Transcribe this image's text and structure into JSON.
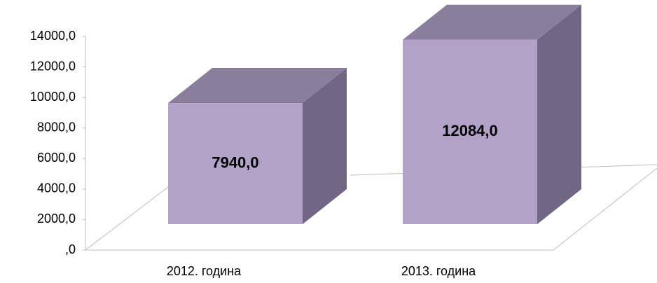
{
  "chart_data": {
    "type": "bar3d",
    "categories": [
      "2012. година",
      "2013. година"
    ],
    "values": [
      7940,
      12084
    ],
    "value_labels": [
      "7940,0",
      "12084,0"
    ],
    "colors": {
      "front": "#b3a2c7",
      "top": "#8a7e9c",
      "side": "#716683"
    },
    "ylim": [
      0,
      14000
    ],
    "yticks": [
      {
        "value": 0,
        "label": ",0"
      },
      {
        "value": 2000,
        "label": "2000,0"
      },
      {
        "value": 4000,
        "label": "4000,0"
      },
      {
        "value": 6000,
        "label": "6000,0"
      },
      {
        "value": 8000,
        "label": "8000,0"
      },
      {
        "value": 10000,
        "label": "10000,0"
      },
      {
        "value": 12000,
        "label": "12000,0"
      },
      {
        "value": 14000,
        "label": "14000,0"
      }
    ]
  }
}
